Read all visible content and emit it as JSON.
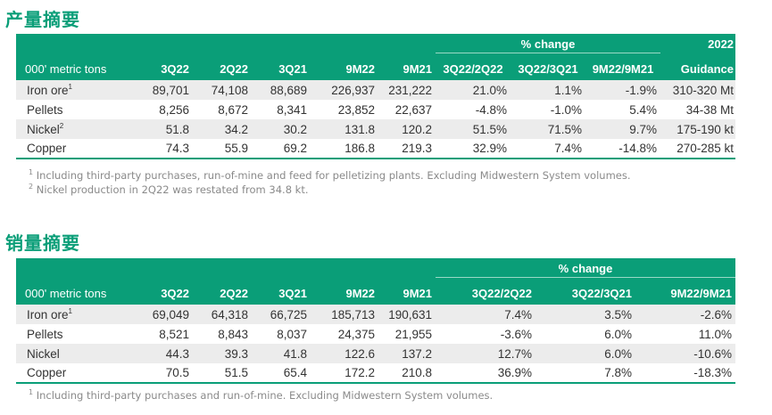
{
  "production": {
    "title": "产量摘要",
    "pct_change_label": "% change",
    "unit_label": "000' metric tons",
    "columns": [
      "3Q22",
      "2Q22",
      "3Q21",
      "9M22",
      "9M21",
      "3Q22/2Q22",
      "3Q22/3Q21",
      "9M22/9M21"
    ],
    "guidance_line1": "2022",
    "guidance_line2": "Guidance",
    "rows": [
      {
        "name": "Iron ore",
        "sup": "1",
        "values": [
          "89,701",
          "74,108",
          "88,689",
          "226,937",
          "231,222",
          "21.0%",
          "1.1%",
          "-1.9%"
        ],
        "guidance": "310-320 Mt"
      },
      {
        "name": "Pellets",
        "sup": "",
        "values": [
          "8,256",
          "8,672",
          "8,341",
          "23,852",
          "22,637",
          "-4.8%",
          "-1.0%",
          "5.4%"
        ],
        "guidance": "34-38 Mt"
      },
      {
        "name": "Nickel",
        "sup": "2",
        "values": [
          "51.8",
          "34.2",
          "30.2",
          "131.8",
          "120.2",
          "51.5%",
          "71.5%",
          "9.7%"
        ],
        "guidance": "175-190 kt"
      },
      {
        "name": "Copper",
        "sup": "",
        "values": [
          "74.3",
          "55.9",
          "69.2",
          "186.8",
          "219.3",
          "32.9%",
          "7.4%",
          "-14.8%"
        ],
        "guidance": "270-285 kt"
      }
    ],
    "notes": [
      {
        "sup": "1",
        "text": " Including third-party purchases, run-of-mine and feed for pelletizing plants. Excluding Midwestern System volumes."
      },
      {
        "sup": "2",
        "text": " Nickel production in 2Q22 was restated from 34.8 kt."
      }
    ]
  },
  "sales": {
    "title": "销量摘要",
    "pct_change_label": "% change",
    "unit_label": "000' metric tons",
    "columns": [
      "3Q22",
      "2Q22",
      "3Q21",
      "9M22",
      "9M21",
      "3Q22/2Q22",
      "3Q22/3Q21",
      "9M22/9M21"
    ],
    "rows": [
      {
        "name": "Iron ore",
        "sup": "1",
        "values": [
          "69,049",
          "64,318",
          "66,725",
          "185,713",
          "190,631",
          "7.4%",
          "3.5%",
          "-2.6%"
        ]
      },
      {
        "name": "Pellets",
        "sup": "",
        "values": [
          "8,521",
          "8,843",
          "8,037",
          "24,375",
          "21,955",
          "-3.6%",
          "6.0%",
          "11.0%"
        ]
      },
      {
        "name": "Nickel",
        "sup": "",
        "values": [
          "44.3",
          "39.3",
          "41.8",
          "122.6",
          "137.2",
          "12.7%",
          "6.0%",
          "-10.6%"
        ]
      },
      {
        "name": "Copper",
        "sup": "",
        "values": [
          "70.5",
          "51.5",
          "65.4",
          "172.2",
          "210.8",
          "36.9%",
          "7.8%",
          "-18.3%"
        ]
      }
    ],
    "notes": [
      {
        "sup": "1",
        "text": " Including third-party purchases and run-of-mine. Excluding Midwestern System volumes."
      }
    ]
  }
}
